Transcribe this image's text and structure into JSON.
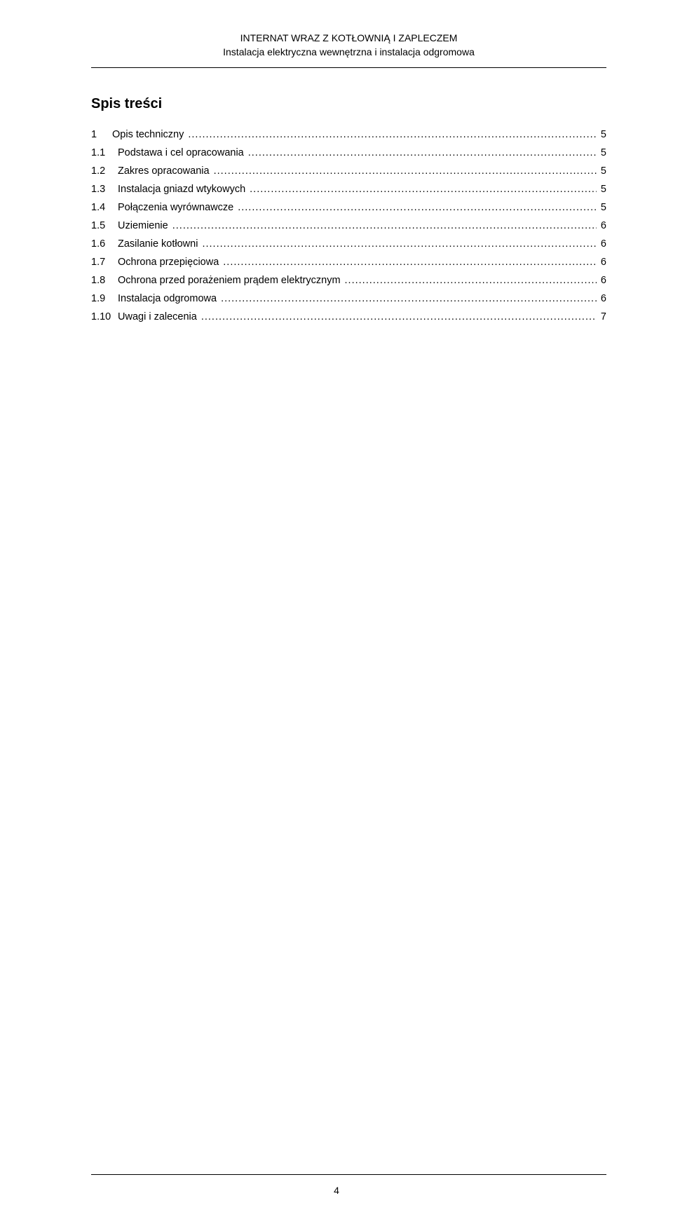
{
  "header": {
    "line1": "INTERNAT WRAZ Z KOTŁOWNIĄ I ZAPLECZEM",
    "line2": "Instalacja elektryczna wewnętrzna i instalacja odgromowa"
  },
  "toc": {
    "title": "Spis treści",
    "items": [
      {
        "num": "1",
        "label": "Opis techniczny",
        "page": "5",
        "main": true
      },
      {
        "num": "1.1",
        "label": "Podstawa i cel opracowania",
        "page": "5",
        "main": false
      },
      {
        "num": "1.2",
        "label": "Zakres opracowania",
        "page": "5",
        "main": false
      },
      {
        "num": "1.3",
        "label": "Instalacja gniazd wtykowych",
        "page": "5",
        "main": false
      },
      {
        "num": "1.4",
        "label": "Połączenia wyrównawcze",
        "page": "5",
        "main": false
      },
      {
        "num": "1.5",
        "label": "Uziemienie",
        "page": "6",
        "main": false
      },
      {
        "num": "1.6",
        "label": "Zasilanie kotłowni",
        "page": "6",
        "main": false
      },
      {
        "num": "1.7",
        "label": "Ochrona przepięciowa",
        "page": "6",
        "main": false
      },
      {
        "num": "1.8",
        "label": "Ochrona przed porażeniem prądem elektrycznym",
        "page": "6",
        "main": false
      },
      {
        "num": "1.9",
        "label": "Instalacja odgromowa",
        "page": "6",
        "main": false
      },
      {
        "num": "1.10",
        "label": "Uwagi i zalecenia",
        "page": "7",
        "main": false
      }
    ]
  },
  "pageNumber": "4",
  "colors": {
    "background": "#ffffff",
    "text": "#000000",
    "rule": "#000000"
  },
  "typography": {
    "header_fontsize": 14,
    "toc_title_fontsize": 20,
    "toc_item_fontsize": 14.5,
    "pagenum_fontsize": 14,
    "font_family": "Arial, Helvetica, sans-serif"
  }
}
